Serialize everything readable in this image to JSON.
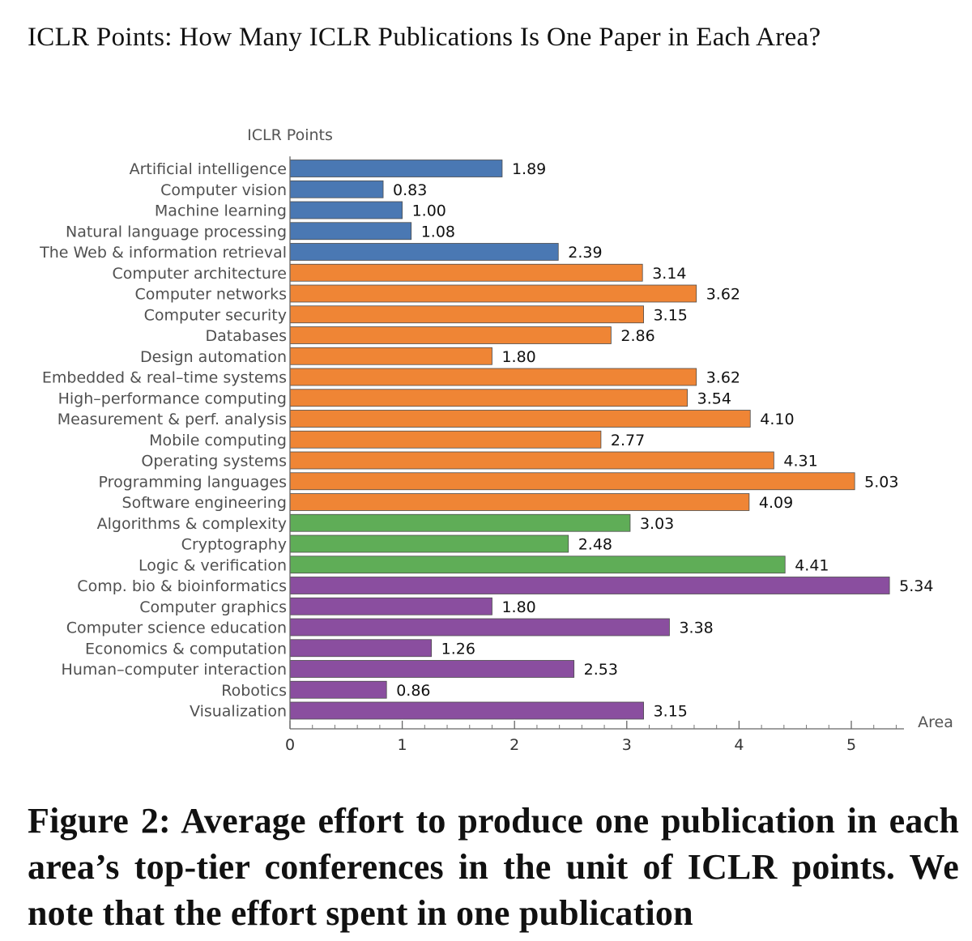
{
  "header": {
    "title": "ICLR Points: How Many ICLR Publications Is One Paper in Each Area?"
  },
  "caption": {
    "text": "Figure 2: Average effort to produce one publication in each area’s top-tier conferences in the unit of ICLR points. We note that the effort spent in one publication"
  },
  "chart_data": {
    "type": "bar",
    "orientation": "horizontal",
    "ylabel": "ICLR Points",
    "xlabel": "Area",
    "xlim": [
      0,
      5.5
    ],
    "xticks": [
      0,
      1,
      2,
      3,
      4,
      5
    ],
    "grid": false,
    "categories": [
      "Artificial intelligence",
      "Computer vision",
      "Machine learning",
      "Natural language processing",
      "The Web & information retrieval",
      "Computer architecture",
      "Computer networks",
      "Computer security",
      "Databases",
      "Design automation",
      "Embedded & real–time systems",
      "High–performance computing",
      "Measurement & perf. analysis",
      "Mobile computing",
      "Operating systems",
      "Programming languages",
      "Software engineering",
      "Algorithms & complexity",
      "Cryptography",
      "Logic & verification",
      "Comp. bio & bioinformatics",
      "Computer graphics",
      "Computer science education",
      "Economics & computation",
      "Human–computer interaction",
      "Robotics",
      "Visualization"
    ],
    "values": [
      1.89,
      0.83,
      1.0,
      1.08,
      2.39,
      3.14,
      3.62,
      3.15,
      2.86,
      1.8,
      3.62,
      3.54,
      4.1,
      2.77,
      4.31,
      5.03,
      4.09,
      3.03,
      2.48,
      4.41,
      5.34,
      1.8,
      3.38,
      1.26,
      2.53,
      0.86,
      3.15
    ],
    "value_labels": [
      "1.89",
      "0.83",
      "1.00",
      "1.08",
      "2.39",
      "3.14",
      "3.62",
      "3.15",
      "2.86",
      "1.80",
      "3.62",
      "3.54",
      "4.10",
      "2.77",
      "4.31",
      "5.03",
      "4.09",
      "3.03",
      "2.48",
      "4.41",
      "5.34",
      "1.80",
      "3.38",
      "1.26",
      "2.53",
      "0.86",
      "3.15"
    ],
    "groups": [
      0,
      0,
      0,
      0,
      0,
      1,
      1,
      1,
      1,
      1,
      1,
      1,
      1,
      1,
      1,
      1,
      1,
      2,
      2,
      2,
      3,
      3,
      3,
      3,
      3,
      3,
      3
    ],
    "group_colors": [
      "#4a78b3",
      "#ef8535",
      "#5fad57",
      "#8a4e9f"
    ]
  }
}
